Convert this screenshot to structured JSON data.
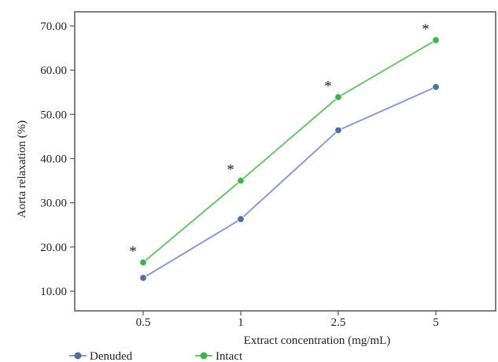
{
  "chart_data": {
    "type": "line",
    "x": [
      "0.5",
      "1",
      "2.5",
      "5"
    ],
    "series": [
      {
        "name": "Denuded",
        "color": "#8a9ccf",
        "marker_color": "#4f6f9f",
        "values": [
          13.0,
          26.3,
          46.4,
          56.2
        ]
      },
      {
        "name": "Intact",
        "color": "#6cc36c",
        "marker_color": "#39b54a",
        "values": [
          16.5,
          35.0,
          53.9,
          66.8
        ]
      }
    ],
    "xlabel": "Extract concentration (mg/mL)",
    "ylabel": "Aorta relaxation (%)",
    "ylim": [
      10,
      70
    ],
    "yticks": [
      "10.00",
      "20.00",
      "30.00",
      "40.00",
      "50.00",
      "60.00",
      "70.00"
    ],
    "significance_marker": "*",
    "significance_on": "Intact",
    "grid": false,
    "legend_position": "bottom-left"
  }
}
